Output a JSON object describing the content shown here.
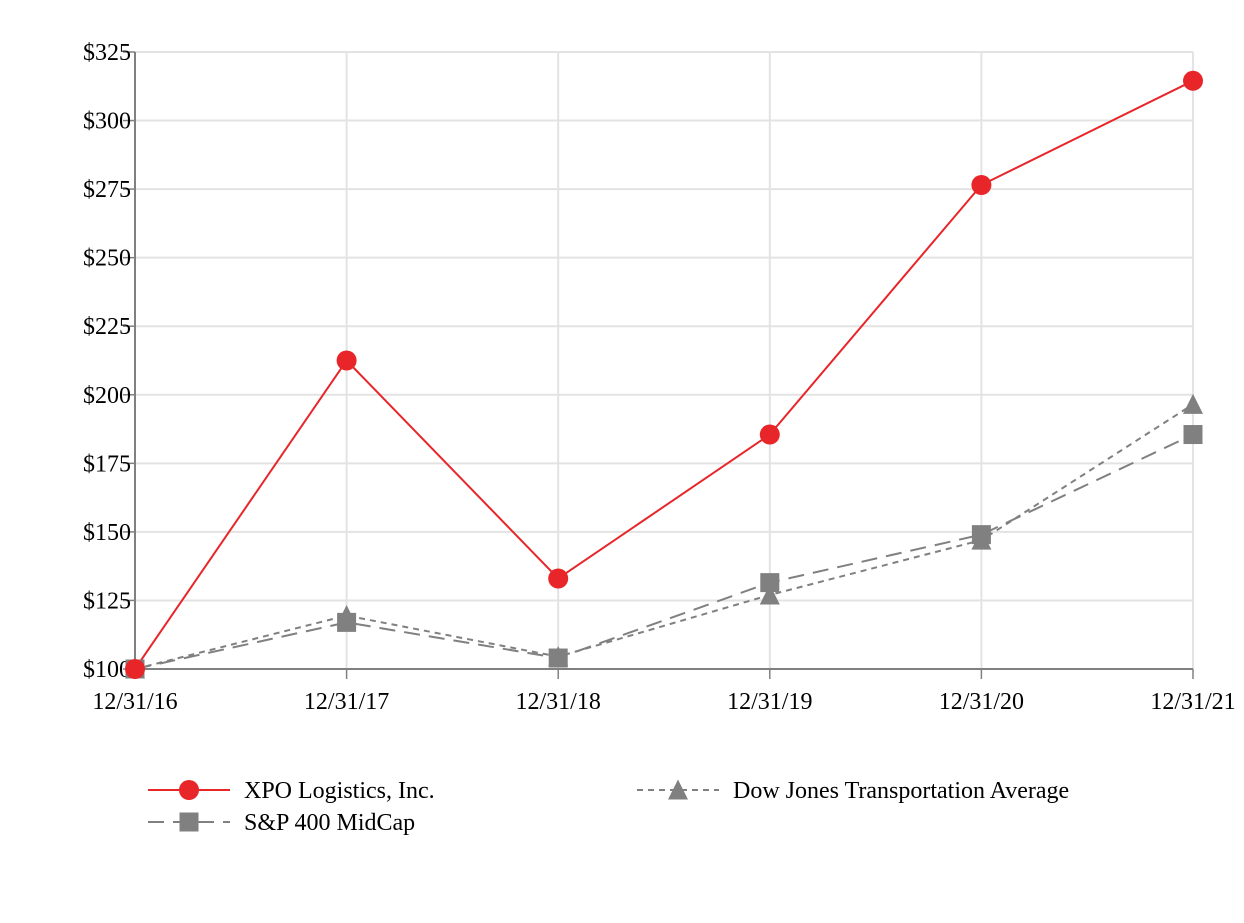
{
  "chart_data": {
    "type": "line",
    "title": "",
    "xlabel": "",
    "ylabel": "",
    "categories": [
      "12/31/16",
      "12/31/17",
      "12/31/18",
      "12/31/19",
      "12/31/20",
      "12/31/21"
    ],
    "yticks": [
      "$100",
      "$125",
      "$150",
      "$175",
      "$200",
      "$225",
      "$250",
      "$275",
      "$300",
      "$325"
    ],
    "ylim": [
      100,
      325
    ],
    "grid": true,
    "legend_position": "bottom",
    "series": [
      {
        "name": "XPO Logistics, Inc.",
        "values": [
          100,
          212.5,
          133,
          185.5,
          276.5,
          314.5
        ],
        "color": "#e8262a",
        "marker": "circle",
        "line": "solid"
      },
      {
        "name": "Dow Jones Transportation Average",
        "values": [
          100,
          119.5,
          104.5,
          127,
          147,
          196.5
        ],
        "color": "#808080",
        "marker": "triangle",
        "line": "dotted"
      },
      {
        "name": "S&P 400 MidCap",
        "values": [
          100,
          117,
          104,
          131.5,
          149,
          185.5
        ],
        "color": "#808080",
        "marker": "square",
        "line": "dashed"
      }
    ]
  }
}
